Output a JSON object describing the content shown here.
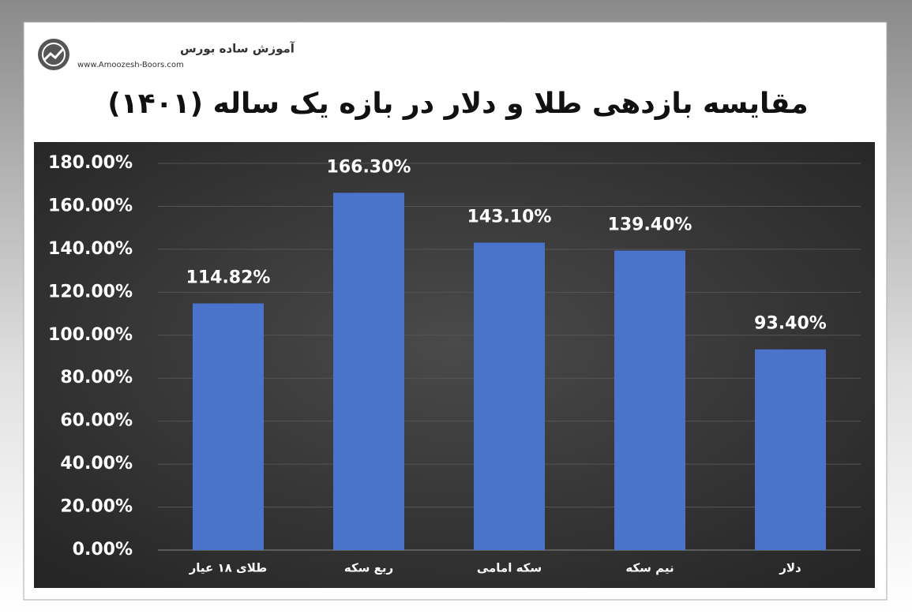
{
  "logo": {
    "name": "آموزش ساده بورس",
    "url": "www.Amoozesh-Boors.com"
  },
  "chart_data": {
    "type": "bar",
    "title": "مقایسه بازدهی طلا و دلار در بازه یک ساله (۱۴۰۱)",
    "categories": [
      "طلای ۱۸ عیار",
      "ربع سکه",
      "سکه امامی",
      "نیم سکه",
      "دلار"
    ],
    "values": [
      114.82,
      166.3,
      143.1,
      139.4,
      93.4
    ],
    "value_labels": [
      "114.82%",
      "166.30%",
      "143.10%",
      "139.40%",
      "93.40%"
    ],
    "color": "#4a74cc",
    "ylim": [
      0,
      180
    ],
    "yticks": [
      {
        "value": 0,
        "label": "0.00%"
      },
      {
        "value": 20,
        "label": "20.00%"
      },
      {
        "value": 40,
        "label": "40.00%"
      },
      {
        "value": 60,
        "label": "60.00%"
      },
      {
        "value": 80,
        "label": "80.00%"
      },
      {
        "value": 100,
        "label": "100.00%"
      },
      {
        "value": 120,
        "label": "120.00%"
      },
      {
        "value": 140,
        "label": "140.00%"
      },
      {
        "value": 160,
        "label": "160.00%"
      },
      {
        "value": 180,
        "label": "180.00%"
      }
    ],
    "grid": true
  }
}
